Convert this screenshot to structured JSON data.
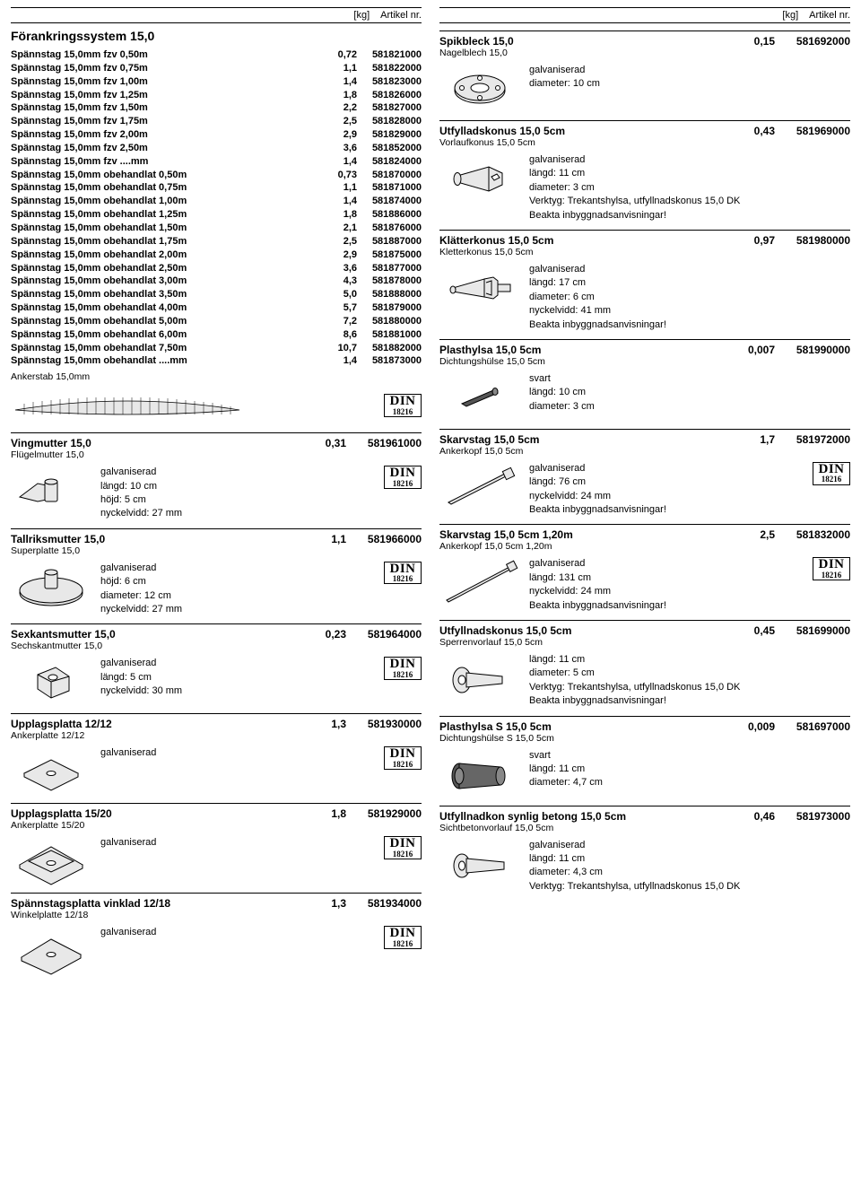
{
  "header": {
    "kg_label": "[kg]",
    "art_label": "Artikel nr."
  },
  "section_title": "Förankringssystem 15,0",
  "din": {
    "big": "DIN",
    "small": "18216"
  },
  "anker_sub": "Ankerstab 15,0mm",
  "spannstag": [
    {
      "name": "Spännstag 15,0mm fzv 0,50m",
      "kg": "0,72",
      "art": "581821000"
    },
    {
      "name": "Spännstag 15,0mm fzv 0,75m",
      "kg": "1,1",
      "art": "581822000"
    },
    {
      "name": "Spännstag 15,0mm fzv 1,00m",
      "kg": "1,4",
      "art": "581823000"
    },
    {
      "name": "Spännstag 15,0mm fzv 1,25m",
      "kg": "1,8",
      "art": "581826000"
    },
    {
      "name": "Spännstag 15,0mm fzv 1,50m",
      "kg": "2,2",
      "art": "581827000"
    },
    {
      "name": "Spännstag 15,0mm fzv 1,75m",
      "kg": "2,5",
      "art": "581828000"
    },
    {
      "name": "Spännstag 15,0mm fzv 2,00m",
      "kg": "2,9",
      "art": "581829000"
    },
    {
      "name": "Spännstag 15,0mm fzv 2,50m",
      "kg": "3,6",
      "art": "581852000"
    },
    {
      "name": "Spännstag 15,0mm fzv ....mm",
      "kg": "1,4",
      "art": "581824000"
    },
    {
      "name": "Spännstag 15,0mm obehandlat 0,50m",
      "kg": "0,73",
      "art": "581870000"
    },
    {
      "name": "Spännstag 15,0mm obehandlat 0,75m",
      "kg": "1,1",
      "art": "581871000"
    },
    {
      "name": "Spännstag 15,0mm obehandlat 1,00m",
      "kg": "1,4",
      "art": "581874000"
    },
    {
      "name": "Spännstag 15,0mm obehandlat 1,25m",
      "kg": "1,8",
      "art": "581886000"
    },
    {
      "name": "Spännstag 15,0mm obehandlat 1,50m",
      "kg": "2,1",
      "art": "581876000"
    },
    {
      "name": "Spännstag 15,0mm obehandlat 1,75m",
      "kg": "2,5",
      "art": "581887000"
    },
    {
      "name": "Spännstag 15,0mm obehandlat 2,00m",
      "kg": "2,9",
      "art": "581875000"
    },
    {
      "name": "Spännstag 15,0mm obehandlat 2,50m",
      "kg": "3,6",
      "art": "581877000"
    },
    {
      "name": "Spännstag 15,0mm obehandlat 3,00m",
      "kg": "4,3",
      "art": "581878000"
    },
    {
      "name": "Spännstag 15,0mm obehandlat 3,50m",
      "kg": "5,0",
      "art": "581888000"
    },
    {
      "name": "Spännstag 15,0mm obehandlat 4,00m",
      "kg": "5,7",
      "art": "581879000"
    },
    {
      "name": "Spännstag 15,0mm obehandlat 5,00m",
      "kg": "7,2",
      "art": "581880000"
    },
    {
      "name": "Spännstag 15,0mm obehandlat 6,00m",
      "kg": "8,6",
      "art": "581881000"
    },
    {
      "name": "Spännstag 15,0mm obehandlat 7,50m",
      "kg": "10,7",
      "art": "581882000"
    },
    {
      "name": "Spännstag 15,0mm obehandlat ....mm",
      "kg": "1,4",
      "art": "581873000"
    }
  ],
  "left_products": [
    {
      "title": "Vingmutter 15,0",
      "sub": "Flügelmutter 15,0",
      "kg": "0,31",
      "art": "581961000",
      "specs": [
        "galvaniserad",
        "längd: 10 cm",
        "höjd: 5 cm",
        "nyckelvidd: 27 mm"
      ],
      "din": true,
      "svg": "wingnut"
    },
    {
      "title": "Tallriksmutter 15,0",
      "sub": "Superplatte 15,0",
      "kg": "1,1",
      "art": "581966000",
      "specs": [
        "galvaniserad",
        "höjd: 6 cm",
        "diameter: 12 cm",
        "nyckelvidd: 27 mm"
      ],
      "din": true,
      "svg": "plate-round"
    },
    {
      "title": "Sexkantsmutter 15,0",
      "sub": "Sechskantmutter 15,0",
      "kg": "0,23",
      "art": "581964000",
      "specs": [
        "galvaniserad",
        "längd: 5 cm",
        "nyckelvidd: 30 mm"
      ],
      "din": true,
      "svg": "hexnut"
    },
    {
      "title": "Upplagsplatta 12/12",
      "sub": "Ankerplatte 12/12",
      "kg": "1,3",
      "art": "581930000",
      "specs": [
        "galvaniserad"
      ],
      "din": true,
      "svg": "plate-sq"
    },
    {
      "title": "Upplagsplatta 15/20",
      "sub": "Ankerplatte 15/20",
      "kg": "1,8",
      "art": "581929000",
      "specs": [
        "galvaniserad"
      ],
      "din": true,
      "svg": "plate-rect"
    },
    {
      "title": "Spännstagsplatta vinklad 12/18",
      "sub": "Winkelplatte 12/18",
      "kg": "1,3",
      "art": "581934000",
      "specs": [
        "galvaniserad"
      ],
      "din": true,
      "svg": "plate-angle"
    }
  ],
  "right_products": [
    {
      "title": "Spikbleck 15,0",
      "sub": "Nagelblech 15,0",
      "kg": "0,15",
      "art": "581692000",
      "specs": [
        "galvaniserad",
        "diameter: 10 cm"
      ],
      "din": false,
      "svg": "flange"
    },
    {
      "title": "Utfylladskonus 15,0 5cm",
      "sub": "Vorlaufkonus 15,0 5cm",
      "kg": "0,43",
      "art": "581969000",
      "specs": [
        "galvaniserad",
        "längd: 11 cm",
        "diameter: 3 cm",
        "Verktyg: Trekantshylsa, utfyllnadskonus 15,0 DK",
        "Beakta inbyggnadsanvisningar!"
      ],
      "din": false,
      "svg": "cone1"
    },
    {
      "title": "Klätterkonus 15,0 5cm",
      "sub": "Kletterkonus 15,0 5cm",
      "kg": "0,97",
      "art": "581980000",
      "specs": [
        "galvaniserad",
        "längd: 17 cm",
        "diameter: 6 cm",
        "nyckelvidd: 41 mm",
        "Beakta inbyggnadsanvisningar!"
      ],
      "din": false,
      "svg": "cone2"
    },
    {
      "title": "Plasthylsa 15,0 5cm",
      "sub": "Dichtungshülse 15,0 5cm",
      "kg": "0,007",
      "art": "581990000",
      "specs": [
        "svart",
        "längd: 10 cm",
        "diameter: 3 cm"
      ],
      "din": false,
      "svg": "tube-sm"
    },
    {
      "title": "Skarvstag 15,0 5cm",
      "sub": "Ankerkopf 15,0 5cm",
      "kg": "1,7",
      "art": "581972000",
      "specs": [
        "galvaniserad",
        "längd: 76 cm",
        "nyckelvidd: 24 mm",
        "Beakta inbyggnadsanvisningar!"
      ],
      "din": true,
      "svg": "rod1"
    },
    {
      "title": "Skarvstag 15,0 5cm 1,20m",
      "sub": "Ankerkopf 15,0 5cm 1,20m",
      "kg": "2,5",
      "art": "581832000",
      "specs": [
        "galvaniserad",
        "längd: 131 cm",
        "nyckelvidd: 24 mm",
        "Beakta inbyggnadsanvisningar!"
      ],
      "din": true,
      "svg": "rod2"
    },
    {
      "title": "Utfyllnadskonus 15,0 5cm",
      "sub": "Sperrenvorlauf 15,0 5cm",
      "kg": "0,45",
      "art": "581699000",
      "specs": [
        "längd: 11 cm",
        "diameter: 5 cm",
        "Verktyg: Trekantshylsa, utfyllnadskonus 15,0 DK",
        "Beakta inbyggnadsanvisningar!"
      ],
      "din": false,
      "svg": "bolt"
    },
    {
      "title": "Plasthylsa S 15,0 5cm",
      "sub": "Dichtungshülse S 15,0 5cm",
      "kg": "0,009",
      "art": "581697000",
      "specs": [
        "svart",
        "längd: 11 cm",
        "diameter: 4,7 cm"
      ],
      "din": false,
      "svg": "tube-lg"
    },
    {
      "title": "Utfyllnadkon synlig betong 15,0 5cm",
      "sub": "Sichtbetonvorlauf 15,0 5cm",
      "kg": "0,46",
      "art": "581973000",
      "specs": [
        "galvaniserad",
        "längd: 11 cm",
        "diameter: 4,3 cm",
        "Verktyg: Trekantshylsa, utfyllnadskonus 15,0 DK"
      ],
      "din": false,
      "svg": "bolt2"
    }
  ],
  "svg_stroke": "#000000",
  "svg_fill": "#e8e8e8"
}
